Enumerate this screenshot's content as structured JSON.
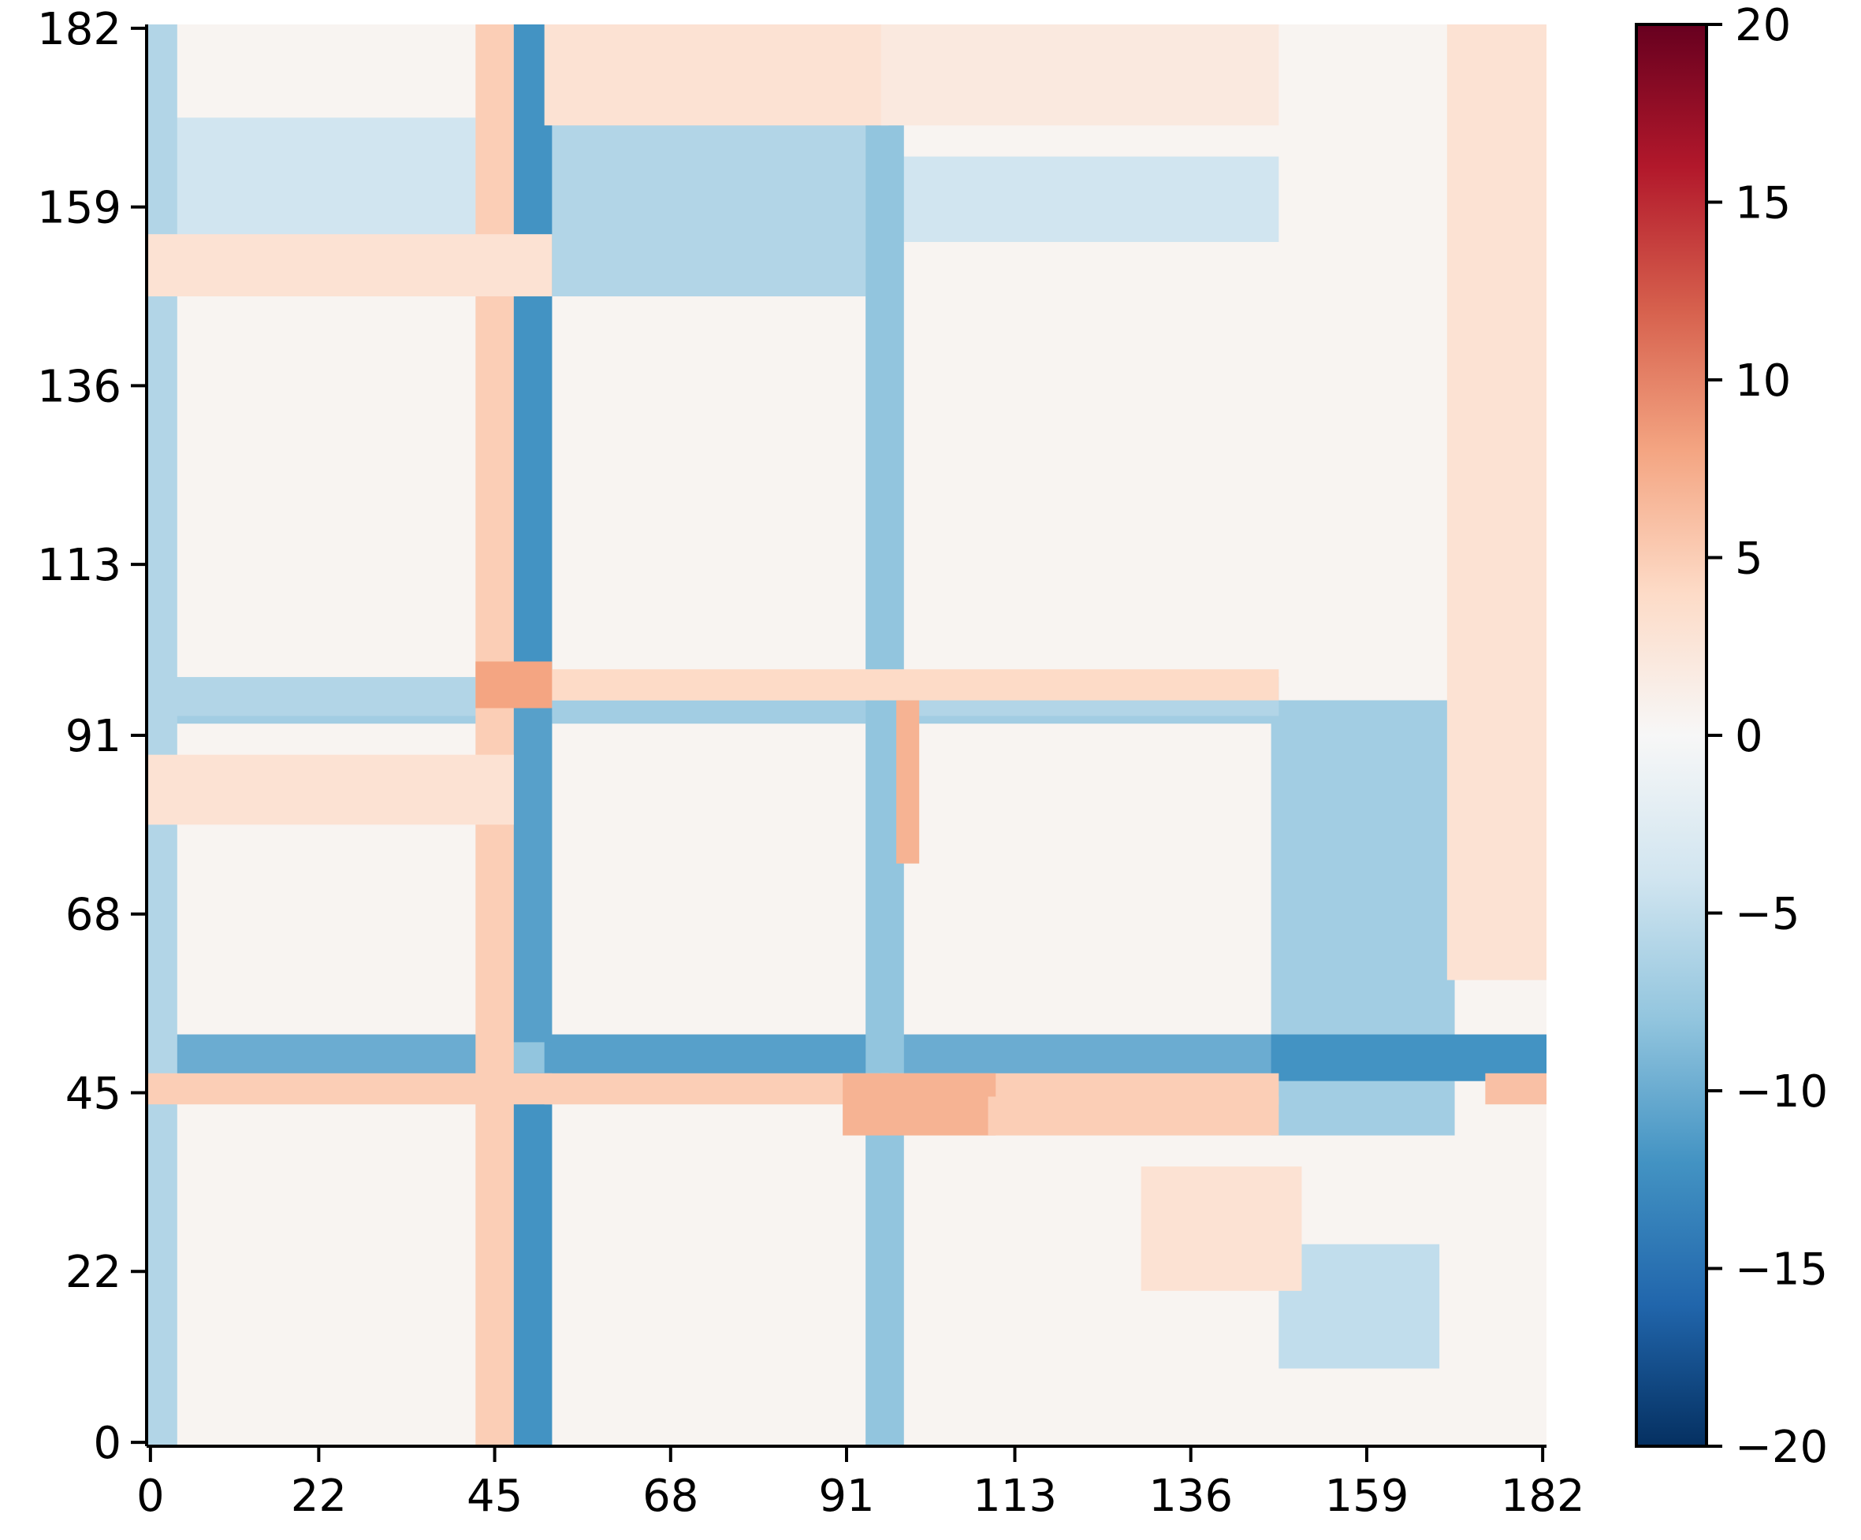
{
  "chart_data": {
    "type": "heatmap",
    "title": "",
    "xlabel": "",
    "ylabel": "",
    "n": 183,
    "x_ticks": [
      0,
      22,
      45,
      68,
      91,
      113,
      136,
      159,
      182
    ],
    "y_ticks": [
      0,
      22,
      45,
      68,
      91,
      113,
      136,
      159,
      182
    ],
    "x_tick_labels": [
      "0",
      "22",
      "45",
      "68",
      "91",
      "113",
      "136",
      "159",
      "182"
    ],
    "y_tick_labels": [
      "0",
      "22",
      "45",
      "68",
      "91",
      "113",
      "136",
      "159",
      "182"
    ],
    "y_origin": "bottom",
    "colormap": "RdBu_r",
    "vmin": -20,
    "vmax": 20,
    "colorbar_ticks": [
      20,
      15,
      10,
      5,
      0,
      -5,
      -10,
      -15,
      -20
    ],
    "colorbar_tick_labels": [
      "20",
      "15",
      "10",
      "5",
      "0",
      "−5",
      "−10",
      "−15",
      "−20"
    ],
    "colorbar_position": "right",
    "regions": [
      {
        "x": [
          0,
          182
        ],
        "y": [
          0,
          182
        ],
        "value": 0.5
      },
      {
        "x": [
          47,
          52
        ],
        "y": [
          0,
          182
        ],
        "value": -8
      },
      {
        "x": [
          0,
          182
        ],
        "y": [
          47,
          52
        ],
        "value": -8
      },
      {
        "x": [
          94,
          96
        ],
        "y": [
          0,
          182
        ],
        "value": -7
      },
      {
        "x": [
          0,
          182
        ],
        "y": [
          93,
          95
        ],
        "value": -7
      },
      {
        "x": [
          147,
          170
        ],
        "y": [
          40,
          95
        ],
        "value": -7
      },
      {
        "x": [
          148,
          168
        ],
        "y": [
          10,
          25
        ],
        "value": -5
      },
      {
        "x": [
          52,
          96
        ],
        "y": [
          148,
          170
        ],
        "value": -6
      },
      {
        "x": [
          0,
          52
        ],
        "y": [
          148,
          170
        ],
        "value": -4
      },
      {
        "x": [
          96,
          147
        ],
        "y": [
          155,
          165
        ],
        "value": -4
      },
      {
        "x": [
          0,
          52
        ],
        "y": [
          94,
          98
        ],
        "value": -6
      },
      {
        "x": [
          96,
          147
        ],
        "y": [
          94,
          98
        ],
        "value": -6
      },
      {
        "x": [
          0,
          47
        ],
        "y": [
          47,
          52
        ],
        "value": -10
      },
      {
        "x": [
          52,
          96
        ],
        "y": [
          47,
          52
        ],
        "value": -11
      },
      {
        "x": [
          96,
          147
        ],
        "y": [
          47,
          52
        ],
        "value": -10
      },
      {
        "x": [
          147,
          182
        ],
        "y": [
          47,
          52
        ],
        "value": -12
      },
      {
        "x": [
          47,
          52
        ],
        "y": [
          0,
          47
        ],
        "value": -12
      },
      {
        "x": [
          47,
          52
        ],
        "y": [
          52,
          94
        ],
        "value": -11
      },
      {
        "x": [
          47,
          52
        ],
        "y": [
          98,
          182
        ],
        "value": -12
      },
      {
        "x": [
          43,
          47
        ],
        "y": [
          0,
          182
        ],
        "value": 5
      },
      {
        "x": [
          94,
          98
        ],
        "y": [
          0,
          182
        ],
        "value": -8
      },
      {
        "x": [
          0,
          3
        ],
        "y": [
          0,
          182
        ],
        "value": -6
      },
      {
        "x": [
          0,
          52
        ],
        "y": [
          44,
          47
        ],
        "value": 5
      },
      {
        "x": [
          52,
          96
        ],
        "y": [
          44,
          47
        ],
        "value": 5
      },
      {
        "x": [
          96,
          147
        ],
        "y": [
          44,
          47
        ],
        "value": 5
      },
      {
        "x": [
          175,
          182
        ],
        "y": [
          44,
          47
        ],
        "value": 6
      },
      {
        "x": [
          0,
          47
        ],
        "y": [
          80,
          88
        ],
        "value": 3
      },
      {
        "x": [
          52,
          147
        ],
        "y": [
          96,
          99
        ],
        "value": 4
      },
      {
        "x": [
          0,
          52
        ],
        "y": [
          148,
          155
        ],
        "value": 3
      },
      {
        "x": [
          52,
          96
        ],
        "y": [
          170,
          182
        ],
        "value": 3
      },
      {
        "x": [
          96,
          147
        ],
        "y": [
          170,
          182
        ],
        "value": 2
      },
      {
        "x": [
          170,
          182
        ],
        "y": [
          60,
          182
        ],
        "value": 3
      },
      {
        "x": [
          91,
          110
        ],
        "y": [
          40,
          47
        ],
        "value": 7
      },
      {
        "x": [
          43,
          52
        ],
        "y": [
          95,
          100
        ],
        "value": 8
      },
      {
        "x": [
          110,
          147
        ],
        "y": [
          40,
          44
        ],
        "value": 5
      },
      {
        "x": [
          98,
          100
        ],
        "y": [
          75,
          95
        ],
        "value": 7
      },
      {
        "x": [
          130,
          150
        ],
        "y": [
          20,
          35
        ],
        "value": 3
      }
    ]
  }
}
